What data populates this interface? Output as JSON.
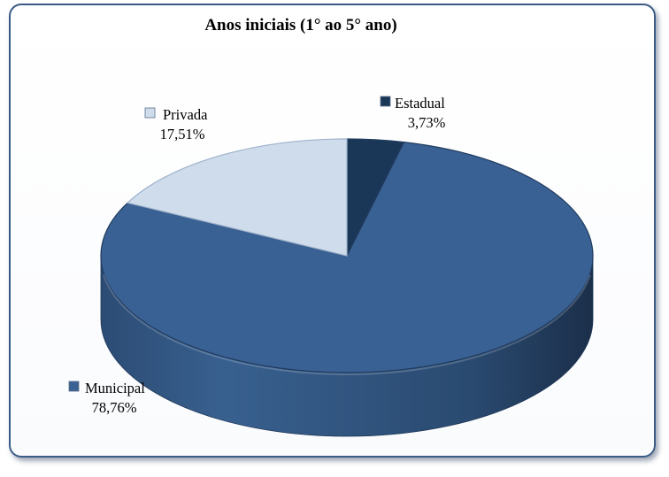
{
  "chart_data": {
    "type": "pie",
    "title": "Anos iniciais  (1° ao 5° ano)",
    "labels": [
      "Estadual",
      "Municipal",
      "Privada"
    ],
    "values": [
      3.73,
      78.76,
      17.51
    ],
    "value_labels": [
      "3,73%",
      "78,76%",
      "17,51%"
    ],
    "colors": [
      "#1a3758",
      "#3a6194",
      "#cfdcec"
    ],
    "style": "3d",
    "legend": "none"
  }
}
